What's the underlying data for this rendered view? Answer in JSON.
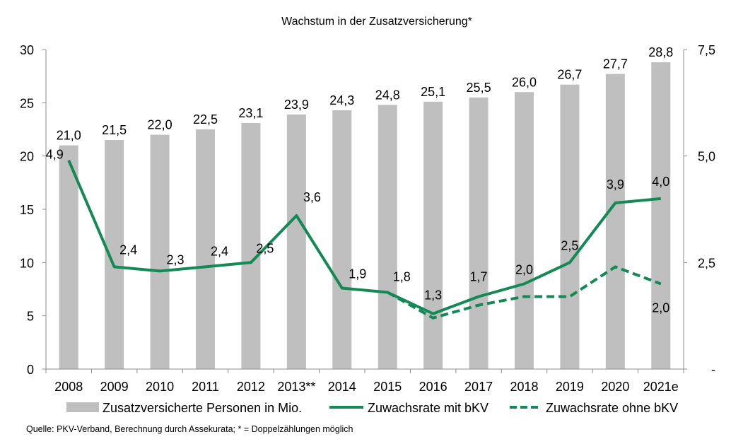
{
  "chart_data": {
    "type": "bar",
    "title": "Wachstum in der Zusatzversicherung*",
    "xlabel": "",
    "ylabel": "",
    "categories": [
      "2008",
      "2009",
      "2010",
      "2011",
      "2012",
      "2013**",
      "2014",
      "2015",
      "2016",
      "2017",
      "2018",
      "2019",
      "2020",
      "2021e"
    ],
    "left_axis": {
      "ylim": [
        0,
        30
      ],
      "ticks": [
        0,
        5,
        10,
        15,
        20,
        25,
        30
      ],
      "tick_labels": [
        "0",
        "5",
        "10",
        "15",
        "20",
        "25",
        "30"
      ]
    },
    "right_axis": {
      "ylim": [
        0,
        7.5
      ],
      "ticks": [
        0,
        2.5,
        5.0,
        7.5
      ],
      "tick_labels": [
        "-",
        "2,5",
        "5,0",
        "7,5"
      ]
    },
    "grid": false,
    "legend_position": "bottom",
    "series": [
      {
        "name": "Zusatzversicherte Personen in Mio.",
        "type": "bar",
        "axis": "left",
        "color": "#bfbfbf",
        "values": [
          21.0,
          21.5,
          22.0,
          22.5,
          23.1,
          23.9,
          24.3,
          24.8,
          25.1,
          25.5,
          26.0,
          26.7,
          27.7,
          28.8
        ],
        "labels": [
          "21,0",
          "21,5",
          "22,0",
          "22,5",
          "23,1",
          "23,9",
          "24,3",
          "24,8",
          "25,1",
          "25,5",
          "26,0",
          "26,7",
          "27,7",
          "28,8"
        ]
      },
      {
        "name": "Zuwachsrate mit bKV",
        "type": "line",
        "style": "solid",
        "axis": "right",
        "color": "#138a55",
        "values": [
          4.9,
          2.4,
          2.3,
          2.4,
          2.5,
          3.6,
          1.9,
          1.8,
          1.3,
          1.7,
          2.0,
          2.5,
          3.9,
          4.0
        ],
        "labels": [
          "4,9",
          "2,4",
          "2,3",
          "2,4",
          "2,5",
          "3,6",
          "1,9",
          "1,8",
          "1,3",
          "1,7",
          "2,0",
          "2,5",
          "3,9",
          "4,0"
        ]
      },
      {
        "name": "Zuwachsrate ohne bKV",
        "type": "line",
        "style": "dashed",
        "axis": "right",
        "color": "#138a55",
        "values": [
          null,
          null,
          null,
          null,
          null,
          null,
          null,
          1.8,
          1.2,
          1.5,
          1.7,
          1.7,
          2.4,
          2.0
        ],
        "labels": [
          null,
          null,
          null,
          null,
          null,
          null,
          null,
          null,
          null,
          null,
          null,
          null,
          null,
          "2,0"
        ]
      }
    ],
    "source": "Quelle: PKV-Verband, Berechnung durch Assekurata; * = Doppelzählungen möglich"
  }
}
